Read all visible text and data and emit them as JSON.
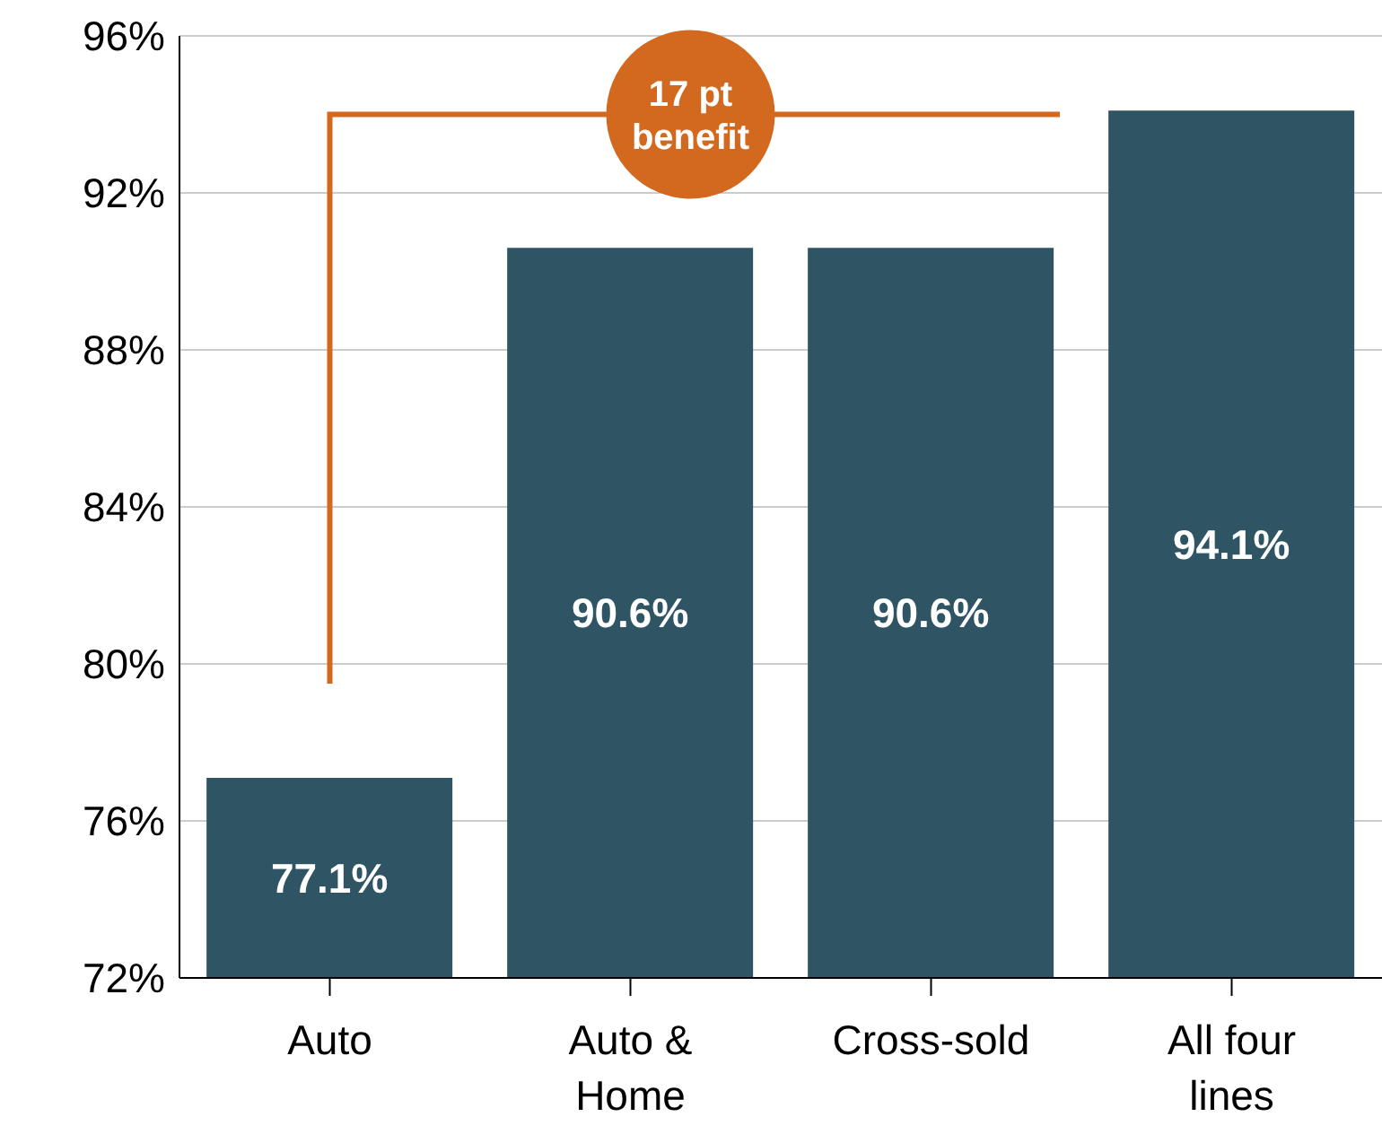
{
  "chart_data": {
    "type": "bar",
    "categories": [
      "Auto",
      "Auto & Home",
      "Cross-sold",
      "All four lines"
    ],
    "values": [
      77.1,
      90.6,
      90.6,
      94.1
    ],
    "value_labels": [
      "77.1%",
      "90.6%",
      "90.6%",
      "94.1%"
    ],
    "color": "#2f5565",
    "ylim": [
      72,
      96
    ],
    "yticks": [
      {
        "value": 72,
        "label": "72%"
      },
      {
        "value": 76,
        "label": "76%"
      },
      {
        "value": 80,
        "label": "80%"
      },
      {
        "value": 84,
        "label": "84%"
      },
      {
        "value": 88,
        "label": "88%"
      },
      {
        "value": 92,
        "label": "92%"
      },
      {
        "value": 96,
        "label": "96%"
      }
    ],
    "grid": "y",
    "legend": false,
    "annotations": [
      "17 pt benefit"
    ]
  }
}
